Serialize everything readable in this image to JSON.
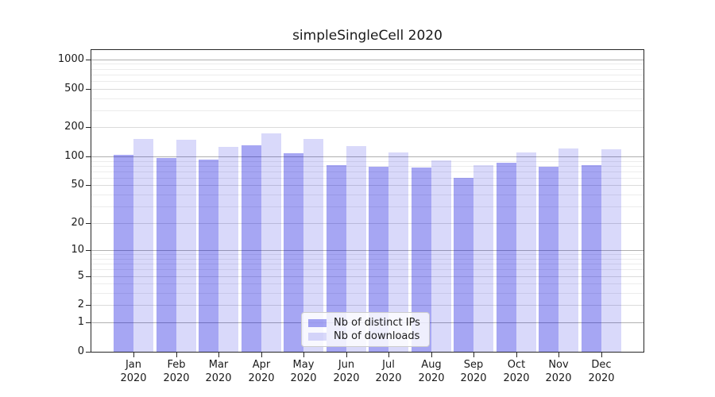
{
  "chart_data": {
    "type": "bar",
    "title": "simpleSingleCell 2020",
    "x_tick_months": [
      "Jan",
      "Feb",
      "Mar",
      "Apr",
      "May",
      "Jun",
      "Jul",
      "Aug",
      "Sep",
      "Oct",
      "Nov",
      "Dec"
    ],
    "x_tick_year": "2020",
    "series": [
      {
        "name": "Nb of distinct IPs",
        "base_color": "#0000dd",
        "alpha": 0.35,
        "values": [
          105,
          97,
          93,
          131,
          108,
          81,
          78,
          77,
          60,
          86,
          78,
          82
        ]
      },
      {
        "name": "Nb of downloads",
        "base_color": "#0000dd",
        "alpha": 0.15,
        "values": [
          152,
          148,
          125,
          174,
          151,
          128,
          110,
          91,
          81,
          110,
          121,
          118
        ]
      }
    ],
    "y_ticks": [
      0,
      1,
      2,
      5,
      10,
      20,
      50,
      100,
      200,
      500,
      1000
    ],
    "y_scale": "log10(1+v)",
    "ylim": [
      0,
      1250
    ],
    "grid": {
      "major_values": [
        1,
        10,
        100,
        1000
      ],
      "major_color": "#b0b0b0",
      "labeled_color": "#dbdbdb",
      "minor_color": "#ececec"
    },
    "legend": {
      "position": "lower-center"
    },
    "axis": {
      "spine_color": "#262626",
      "text_color": "#1a1a1a"
    }
  }
}
